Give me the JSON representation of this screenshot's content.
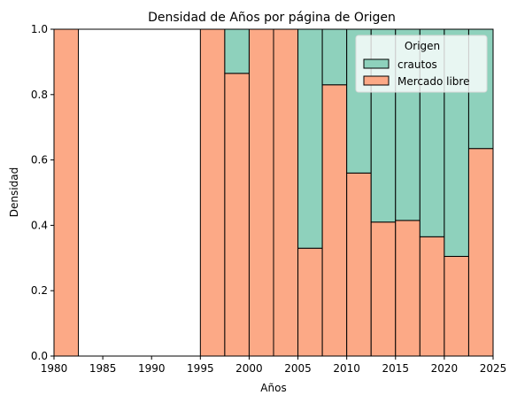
{
  "chart_data": {
    "type": "bar",
    "stacked": true,
    "normalized": true,
    "title": "Densidad de Años por página de Origen",
    "xlabel": "Años",
    "ylabel": "Densidad",
    "xlim": [
      1980,
      2025
    ],
    "ylim": [
      0,
      1
    ],
    "xticks": [
      "1980",
      "1985",
      "1990",
      "1995",
      "2000",
      "2005",
      "2010",
      "2015",
      "2020",
      "2025"
    ],
    "yticks": [
      "0.0",
      "0.2",
      "0.4",
      "0.6",
      "0.8",
      "1.0"
    ],
    "bin_width": 2.5,
    "bins": [
      1980,
      1982.5,
      1985,
      1987.5,
      1990,
      1992.5,
      1995,
      1997.5,
      2000,
      2002.5,
      2005,
      2007.5,
      2010,
      2012.5,
      2015,
      2017.5,
      2020,
      2022.5
    ],
    "series": [
      {
        "name": "Mercado libre",
        "color": "#fca986",
        "values": [
          1.0,
          0,
          0,
          0,
          0,
          0,
          1.0,
          0.865,
          1.0,
          1.0,
          0.33,
          0.83,
          0.56,
          0.41,
          0.415,
          0.365,
          0.305,
          0.635
        ]
      },
      {
        "name": "crautos",
        "color": "#8ed1bc",
        "values": [
          0,
          0,
          0,
          0,
          0,
          0,
          0,
          0.135,
          0,
          0,
          0.67,
          0.17,
          0.44,
          0.59,
          0.585,
          0.635,
          0.695,
          0.365
        ]
      }
    ],
    "legend": {
      "title": "Origen",
      "placement": "top-right",
      "entries": [
        "crautos",
        "Mercado libre"
      ]
    },
    "grid": false
  }
}
